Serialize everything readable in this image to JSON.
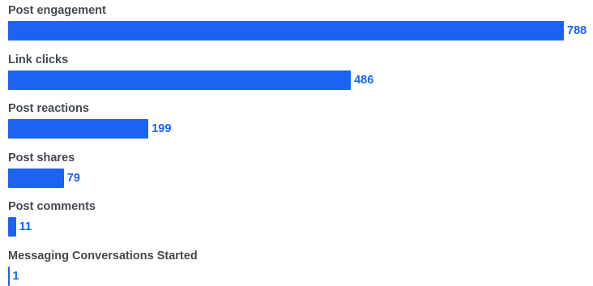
{
  "colors": {
    "bar": "#1b63f0",
    "value_text": "#1b63f0",
    "label_text": "#444950"
  },
  "chart_data": {
    "type": "bar",
    "orientation": "horizontal",
    "categories": [
      "Post engagement",
      "Link clicks",
      "Post reactions",
      "Post shares",
      "Post comments",
      "Messaging Conversations Started"
    ],
    "values": [
      788,
      486,
      199,
      79,
      11,
      1
    ],
    "value_labels": [
      "788",
      "486",
      "199",
      "79",
      "11",
      "1"
    ],
    "title": "",
    "xlabel": "",
    "ylabel": "",
    "xlim": [
      0,
      788
    ],
    "grid": false,
    "legend": "none"
  }
}
